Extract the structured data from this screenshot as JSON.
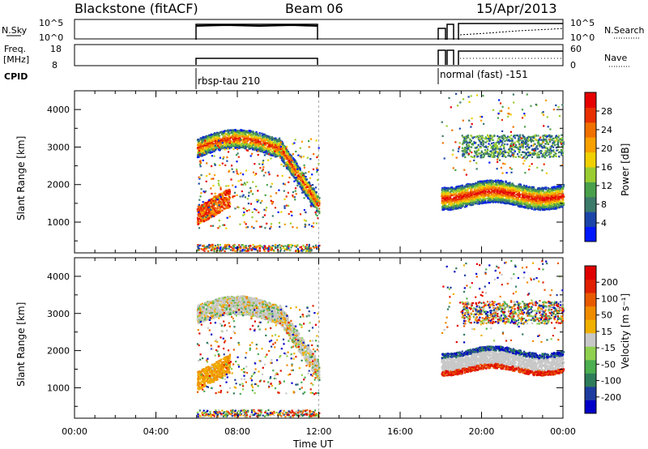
{
  "header": {
    "title": "Blackstone (fitACF)",
    "beam": "Beam 06",
    "date": "15/Apr/2013"
  },
  "strip_panels": {
    "nsky_label": "N.Sky",
    "nsky_ticks": [
      "10^5",
      "10^0"
    ],
    "nsearch_label": "N.Search",
    "nsearch_ticks": [
      "10^5",
      "10^0"
    ],
    "freq_label": "Freq.",
    "freq_unit": "[MHz]",
    "freq_ticks": [
      "18",
      "8"
    ],
    "nave_label": "Nave",
    "nave_ticks": [
      "60",
      "0"
    ],
    "cpid_label": "CPID",
    "cpid_segments": [
      "rbsp-tau 210",
      "normal (fast) -151"
    ]
  },
  "chart_data": [
    {
      "type": "heatmap",
      "name": "power",
      "ylabel": "Slant Range [km]",
      "ytick_labels": [
        "1000",
        "2000",
        "3000",
        "4000"
      ],
      "yticks": [
        1000,
        2000,
        3000,
        4000
      ],
      "ylim": [
        180,
        4500
      ],
      "xlim": [
        0,
        24
      ],
      "colorbar": {
        "label": "Power [dB]",
        "ticks": [
          "4",
          "8",
          "12",
          "16",
          "20",
          "24",
          "28"
        ],
        "colors": [
          "#0018ff",
          "#1b45a8",
          "#3c7a6a",
          "#4aa04a",
          "#9acd32",
          "#f0d000",
          "#f7a000",
          "#f07000",
          "#e83000",
          "#e60000"
        ]
      },
      "echo_regions": [
        {
          "t_start": 6.0,
          "t_end": 12.0,
          "range_start": 800,
          "range_end": 3600,
          "description": "scatter band descending from ~3000 km to ~1400 km"
        },
        {
          "t_start": 18.0,
          "t_end": 24.0,
          "range_start": 1200,
          "range_end": 2200,
          "description": "band near 1600-1800 km"
        },
        {
          "t_start": 19.0,
          "t_end": 24.0,
          "range_start": 2800,
          "range_end": 3500,
          "description": "weak band near 3000 km"
        }
      ]
    },
    {
      "type": "heatmap",
      "name": "velocity",
      "ylabel": "Slant Range [km]",
      "ytick_labels": [
        "1000",
        "2000",
        "3000",
        "4000"
      ],
      "yticks": [
        1000,
        2000,
        3000,
        4000
      ],
      "ylim": [
        180,
        4500
      ],
      "xlim": [
        0,
        24
      ],
      "xlabel": "Time UT",
      "xtick_labels": [
        "00:00",
        "04:00",
        "08:00",
        "12:00",
        "16:00",
        "20:00",
        "00:00"
      ],
      "xticks": [
        0,
        4,
        8,
        12,
        16,
        20,
        24
      ],
      "colorbar": {
        "label": "Velocity [m s⁻¹]",
        "ticks": [
          "200",
          "100",
          "50",
          "15",
          "-15",
          "-50",
          "-100",
          "-200"
        ],
        "colors": [
          "#0000c8",
          "#1e3ca0",
          "#2e7d5a",
          "#4caf50",
          "#8fd14f",
          "#c8c8c8",
          "#f0b000",
          "#f08c00",
          "#e85a00",
          "#e02000",
          "#e00000"
        ]
      },
      "echo_regions": [
        {
          "t_start": 6.0,
          "t_end": 12.0,
          "range_start": 800,
          "range_end": 3600,
          "description": "gray/green band descending, orange low velocity near 1000 km"
        },
        {
          "t_start": 18.0,
          "t_end": 24.0,
          "range_start": 1200,
          "range_end": 2200,
          "description": "gray band with blue/red edges"
        },
        {
          "t_start": 19.0,
          "t_end": 24.0,
          "range_start": 2800,
          "range_end": 3500,
          "description": "mixed scatter near 3000 km"
        }
      ]
    }
  ]
}
